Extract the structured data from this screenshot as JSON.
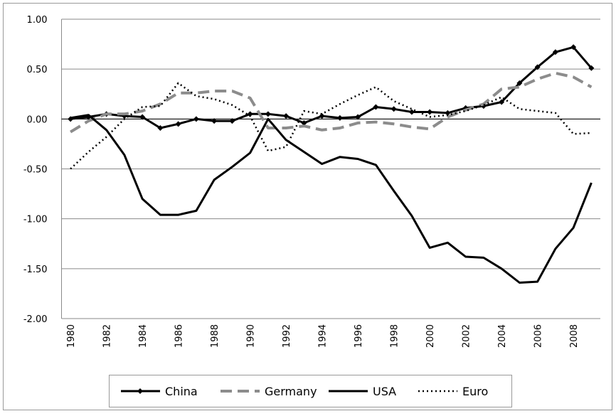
{
  "chart_data": {
    "type": "line",
    "categories": [
      "1980",
      null,
      "1982",
      null,
      "1984",
      null,
      "1986",
      null,
      "1988",
      null,
      "1990",
      null,
      "1992",
      null,
      "1994",
      null,
      "1996",
      null,
      "1998",
      null,
      "2000",
      null,
      "2002",
      null,
      "2004",
      null,
      "2006",
      null,
      "2008",
      null
    ],
    "series": [
      {
        "name": "China",
        "color": "#000000",
        "style": "solid-diamond",
        "values": [
          0.0,
          0.02,
          0.05,
          0.03,
          0.02,
          -0.09,
          -0.05,
          0.0,
          -0.02,
          -0.02,
          0.05,
          0.05,
          0.03,
          -0.04,
          0.03,
          0.01,
          0.02,
          0.12,
          0.1,
          0.07,
          0.07,
          0.06,
          0.11,
          0.13,
          0.17,
          0.36,
          0.52,
          0.67,
          0.72,
          0.51
        ]
      },
      {
        "name": "Germany",
        "color": "#8c8c8c",
        "style": "dashed",
        "values": [
          -0.13,
          -0.02,
          0.05,
          0.05,
          0.08,
          0.15,
          0.26,
          0.26,
          0.28,
          0.28,
          0.21,
          -0.09,
          -0.09,
          -0.07,
          -0.11,
          -0.09,
          -0.04,
          -0.03,
          -0.05,
          -0.08,
          -0.1,
          0.02,
          0.09,
          0.15,
          0.3,
          0.32,
          0.4,
          0.46,
          0.42,
          0.32
        ]
      },
      {
        "name": "USA",
        "color": "#000000",
        "style": "solid",
        "values": [
          0.01,
          0.04,
          -0.11,
          -0.36,
          -0.8,
          -0.96,
          -0.96,
          -0.92,
          -0.61,
          -0.48,
          -0.34,
          0.0,
          -0.21,
          -0.33,
          -0.45,
          -0.38,
          -0.4,
          -0.46,
          -0.72,
          -0.97,
          -1.29,
          -1.24,
          -1.38,
          -1.39,
          -1.5,
          -1.64,
          -1.63,
          -1.3,
          -1.09,
          -0.64
        ]
      },
      {
        "name": "Euro",
        "color": "#000000",
        "style": "dotted",
        "values": [
          -0.5,
          -0.33,
          -0.18,
          0.0,
          0.12,
          0.13,
          0.36,
          0.23,
          0.2,
          0.14,
          0.03,
          -0.32,
          -0.28,
          0.08,
          0.05,
          0.15,
          0.24,
          0.32,
          0.18,
          0.1,
          0.02,
          0.04,
          0.08,
          0.14,
          0.22,
          0.1,
          0.08,
          0.06,
          -0.15,
          -0.14
        ]
      }
    ],
    "ylim": [
      -2,
      1
    ],
    "yticks": [
      {
        "value": -2,
        "label": "-2.00"
      },
      {
        "value": -1.5,
        "label": "-1.50"
      },
      {
        "value": -1,
        "label": "-1.00"
      },
      {
        "value": -0.5,
        "label": "-0.50"
      },
      {
        "value": 0,
        "label": "0.00"
      },
      {
        "value": 0.5,
        "label": "0.50"
      },
      {
        "value": 1,
        "label": "1.00"
      }
    ],
    "grid": true,
    "legend": "bottom"
  }
}
